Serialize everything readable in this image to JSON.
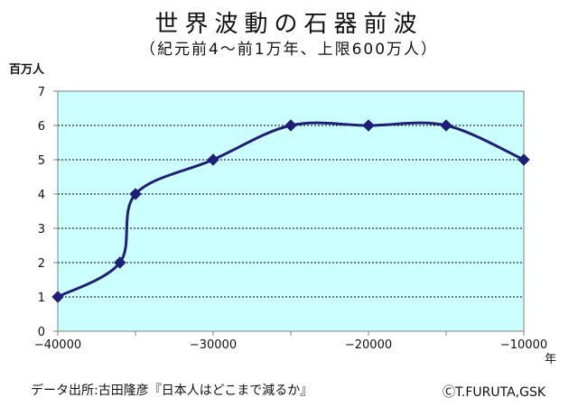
{
  "chart_data": {
    "type": "line",
    "title": "世界波動の石器前波",
    "subtitle": "（紀元前4～前1万年、上限600万人）",
    "ylabel": "百万人",
    "xlabel": "年",
    "x": [
      -40000,
      -36000,
      -35000,
      -30000,
      -25000,
      -20000,
      -15000,
      -10000
    ],
    "values": [
      1,
      2,
      4,
      5,
      6,
      6,
      6,
      5
    ],
    "xlim": [
      -40000,
      -10000
    ],
    "ylim": [
      0,
      7
    ],
    "x_ticks": [
      -40000,
      -30000,
      -20000,
      -10000
    ],
    "y_ticks": [
      0,
      1,
      2,
      3,
      4,
      5,
      6,
      7
    ],
    "x_tick_labels": [
      "−40000",
      "−30000",
      "−20000",
      "−10000"
    ],
    "grid": "horizontal dotted",
    "smooth": true,
    "marker": "diamond",
    "line_color": "#1f1f7a",
    "plot_background": "#ccffff"
  },
  "footer": {
    "source": "データ出所:古田隆彦『日本人はどこまで減るか』",
    "credit": "ⒸT.FURUTA,GSK"
  }
}
